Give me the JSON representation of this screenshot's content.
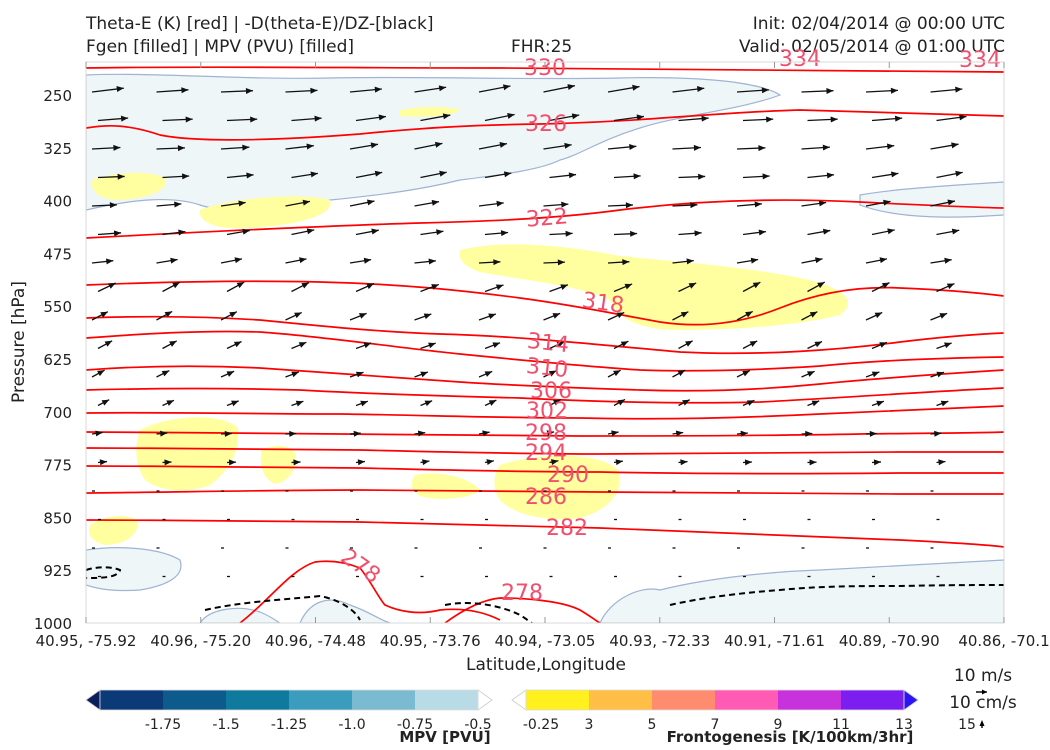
{
  "header": {
    "line1_left": "Theta-E (K) [red] | -D(theta-E)/DZ-[black]",
    "line2_left": "Fgen [filled] | MPV (PVU) [filled]",
    "fhr": "FHR:25",
    "init": "Init: 02/04/2014 @ 00:00 UTC",
    "valid": "Valid: 02/05/2014 @ 01:00 UTC"
  },
  "chart_data": {
    "type": "cross-section",
    "ylabel": "Pressure [hPa]",
    "xlabel": "Latitude,Longitude",
    "y_ticks": [
      250,
      325,
      400,
      475,
      550,
      625,
      700,
      775,
      850,
      925,
      1000
    ],
    "ylim": [
      1000,
      200
    ],
    "y_scale": "linear, inverted",
    "x_ticks": [
      "40.95, -75.92",
      "40.96, -75.20",
      "40.96, -74.48",
      "40.95, -73.76",
      "40.94, -73.05",
      "40.93, -72.33",
      "40.91, -71.61",
      "40.89, -70.90",
      "40.86, -70.1"
    ],
    "contour_labels": [
      "330",
      "334",
      "334",
      "326",
      "322",
      "318",
      "314",
      "310",
      "306",
      "302",
      "298",
      "294",
      "290",
      "286",
      "282",
      "278",
      "278"
    ],
    "reference_vectors": [
      "10 m/s",
      "10 cm/s"
    ],
    "colorbars": [
      {
        "name": "MPV [PVU]",
        "ticks": [
          "-1.75",
          "-1.5",
          "-1.25",
          "-1.0",
          "-0.75",
          "-0.5",
          "-0.25"
        ],
        "colors": [
          "#0a1d5c",
          "#0c3a78",
          "#0d5a8c",
          "#0f7a9e",
          "#3b9cbd",
          "#7bbbd2",
          "#b9dbe6",
          "#ffffff"
        ]
      },
      {
        "name": "Frontogenesis [K/100km/3hr]",
        "ticks": [
          "3",
          "5",
          "7",
          "9",
          "11",
          "13",
          "15"
        ],
        "colors": [
          "#ffffff",
          "#fff01e",
          "#ffbe46",
          "#ff8c6e",
          "#ff5ab4",
          "#c832dc",
          "#7d1ef0",
          "#2d14f5"
        ]
      }
    ],
    "colors": {
      "theta_e": "#ff0000",
      "label": "#f0506e",
      "fgen_fill": "#ffffa0",
      "mpv_fill": "#eef6f8"
    }
  }
}
